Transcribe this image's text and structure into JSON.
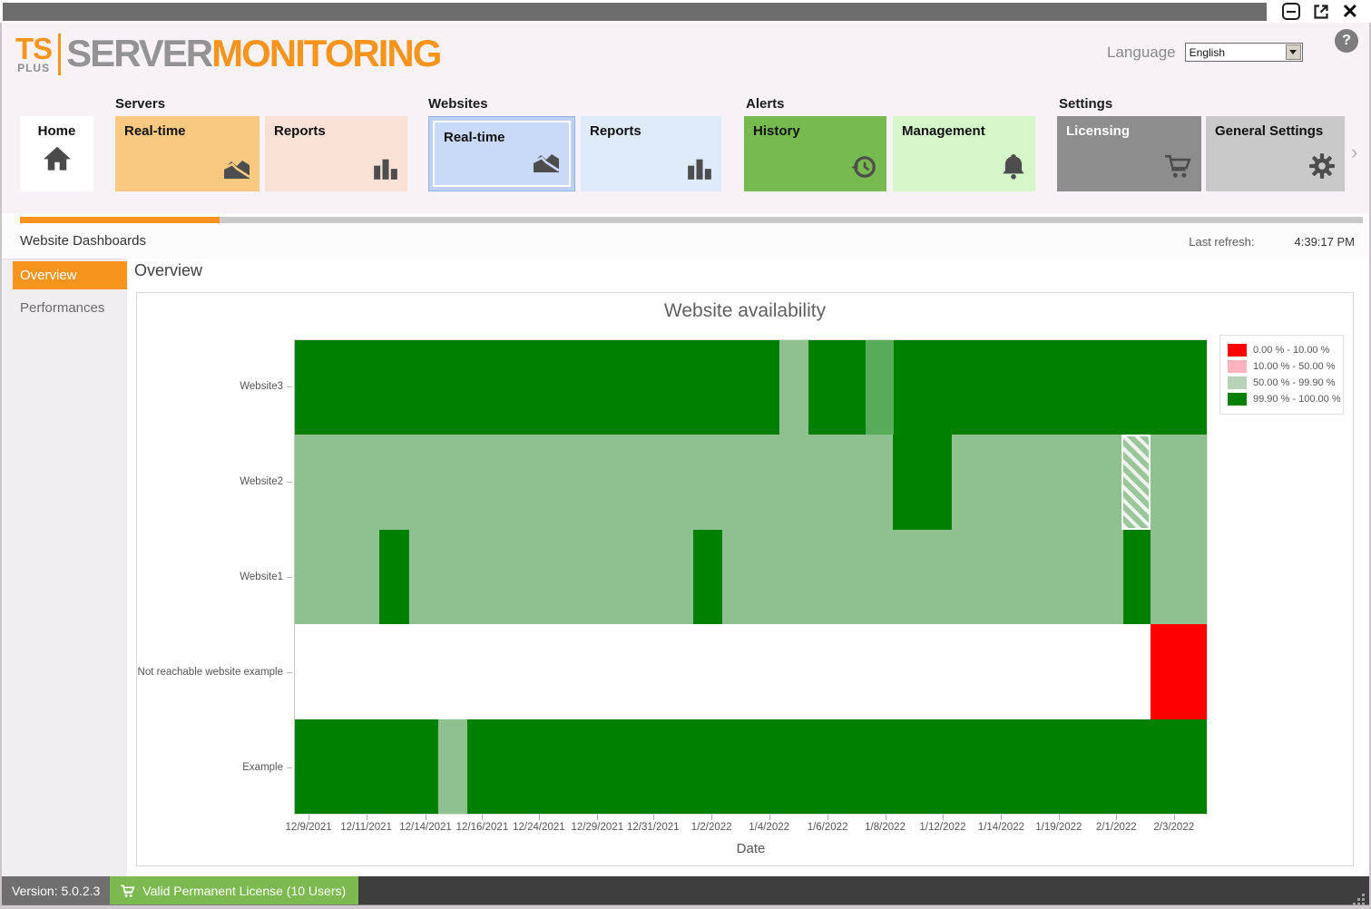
{
  "header": {
    "logo_ts": "TS",
    "logo_plus": "PLUS",
    "logo_server": "SERVER",
    "logo_monitoring": "MONITORING",
    "language_label": "Language",
    "language_value": "English",
    "help_glyph": "?"
  },
  "ribbon": {
    "home_label": "Home",
    "more_glyph": "›",
    "groups": [
      {
        "label": "Servers",
        "tiles": [
          {
            "label": "Real-time"
          },
          {
            "label": "Reports"
          }
        ]
      },
      {
        "label": "Websites",
        "tiles": [
          {
            "label": "Real-time",
            "selected": true
          },
          {
            "label": "Reports"
          }
        ]
      },
      {
        "label": "Alerts",
        "tiles": [
          {
            "label": "History"
          },
          {
            "label": "Management"
          }
        ]
      },
      {
        "label": "Settings",
        "tiles": [
          {
            "label": "Licensing"
          },
          {
            "label": "General Settings"
          }
        ]
      }
    ]
  },
  "breadcrumb": {
    "title": "Website Dashboards",
    "last_refresh_label": "Last refresh:",
    "last_refresh_time": "4:39:17 PM"
  },
  "sidebar": {
    "items": [
      {
        "label": "Overview",
        "selected": true
      },
      {
        "label": "Performances",
        "selected": false
      }
    ]
  },
  "main": {
    "heading": "Overview"
  },
  "chart_data": {
    "type": "heatmap",
    "title": "Website availability",
    "xlabel": "Date",
    "x_ticks": [
      "12/9/2021",
      "12/11/2021",
      "12/14/2021",
      "12/16/2021",
      "12/24/2021",
      "12/29/2021",
      "12/31/2021",
      "1/2/2022",
      "1/4/2022",
      "1/6/2022",
      "1/8/2022",
      "1/12/2022",
      "1/14/2022",
      "1/19/2022",
      "2/1/2022",
      "2/3/2022"
    ],
    "x_tick_pcts": [
      1.6,
      7.9,
      14.4,
      20.6,
      26.8,
      33.2,
      39.3,
      45.7,
      52.0,
      58.4,
      64.7,
      71.0,
      77.4,
      83.7,
      90.0,
      96.3
    ],
    "colors": {
      "red": "#ff0000",
      "pink": "#ffb3be",
      "green_light_legend": "#b7d3b7",
      "green_light": "#8fc08f",
      "green_mid": "#57ac57",
      "green_dark": "#008000",
      "white": "#ffffff"
    },
    "legend": [
      {
        "label": "0.00 % - 10.00 %",
        "color": "red"
      },
      {
        "label": "10.00 % - 50.00 %",
        "color": "pink"
      },
      {
        "label": "50.00 % - 99.90 %",
        "color": "green_light_legend"
      },
      {
        "label": "99.90 % - 100.00 %",
        "color": "green_dark"
      }
    ],
    "legend_meaning": "website availability percentage per date range",
    "row_data": [
      {
        "name": "Website3",
        "base": "green_dark",
        "segments": [
          {
            "from": 53.1,
            "to": 56.3,
            "color": "green_light"
          },
          {
            "from": 62.6,
            "to": 65.7,
            "color": "green_mid"
          }
        ]
      },
      {
        "name": "Website2",
        "base": "green_light",
        "segments": [
          {
            "from": 65.6,
            "to": 72.0,
            "color": "green_dark"
          },
          {
            "from": 90.6,
            "to": 93.8,
            "color": "hatched"
          }
        ]
      },
      {
        "name": "Website1",
        "base": "green_light",
        "segments": [
          {
            "from": 9.3,
            "to": 12.5,
            "color": "green_dark"
          },
          {
            "from": 43.7,
            "to": 46.9,
            "color": "green_dark"
          },
          {
            "from": 90.8,
            "to": 93.8,
            "color": "green_dark"
          }
        ]
      },
      {
        "name": "Not reachable website example",
        "base": "white",
        "segments": [
          {
            "from": 93.8,
            "to": 100,
            "color": "red"
          }
        ]
      },
      {
        "name": "Example",
        "base": "green_dark",
        "segments": [
          {
            "from": 15.7,
            "to": 18.9,
            "color": "green_light"
          }
        ]
      }
    ]
  },
  "status_bar": {
    "version": "Version: 5.0.2.3",
    "license": "Valid Permanent License (10 Users)"
  },
  "brand_colors": {
    "accent_orange": "#f7941e",
    "alert_green": "#76ba50",
    "selected_blue": "#c8daf8"
  }
}
